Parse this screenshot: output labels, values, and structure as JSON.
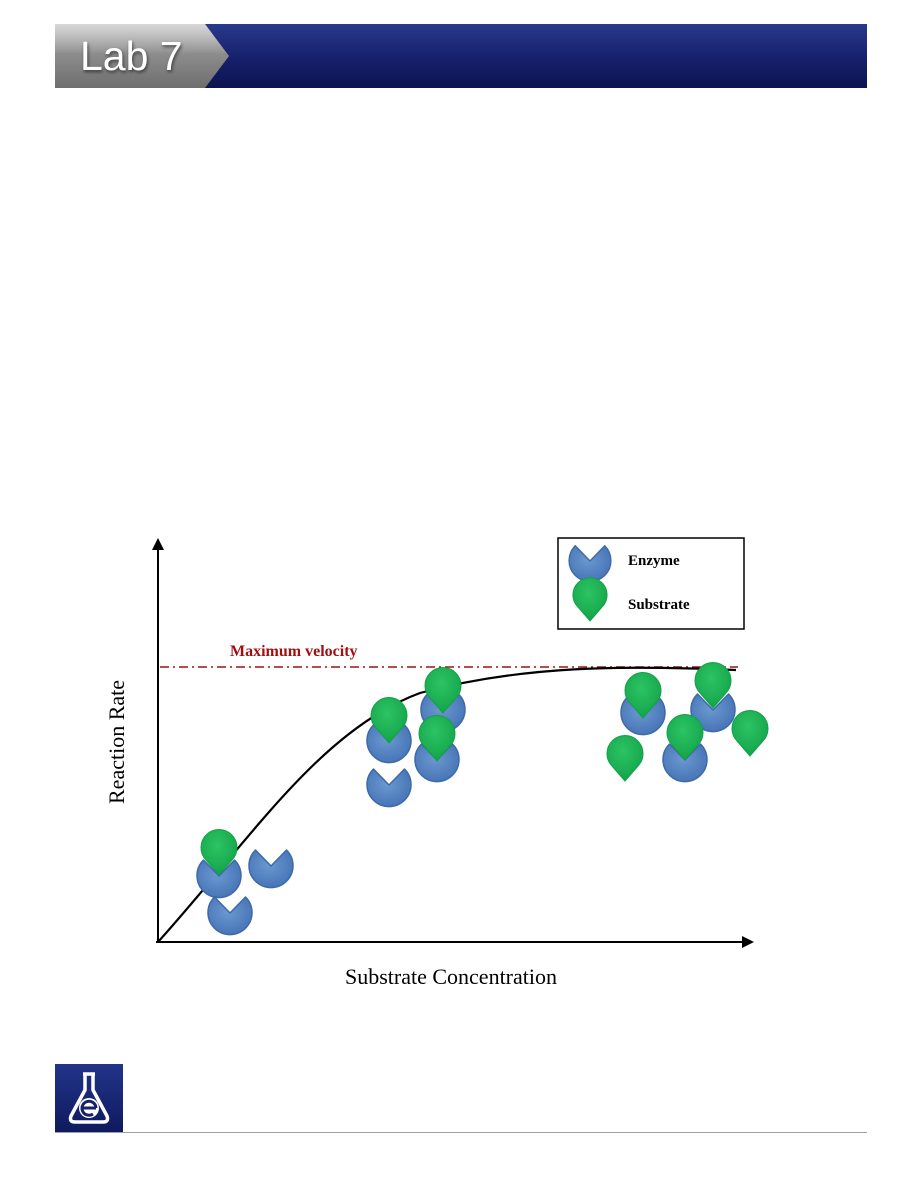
{
  "header": {
    "title": "Lab 7",
    "bar_color": "#16206b",
    "tab_color": "#9a9a9a"
  },
  "diagram": {
    "y_axis_label": "Reaction Rate",
    "x_axis_label": "Substrate Concentration",
    "max_line_label": "Maximum velocity",
    "max_line_color": "#a01010",
    "curve_color": "#000000",
    "legend": {
      "items": [
        {
          "label": "Enzyme",
          "icon": "enzyme-icon",
          "color": "#4f81bd"
        },
        {
          "label": "Substrate",
          "icon": "substrate-icon",
          "color": "#1aaf50"
        }
      ]
    }
  },
  "footer": {
    "logo_icon": "flask-e-icon"
  }
}
